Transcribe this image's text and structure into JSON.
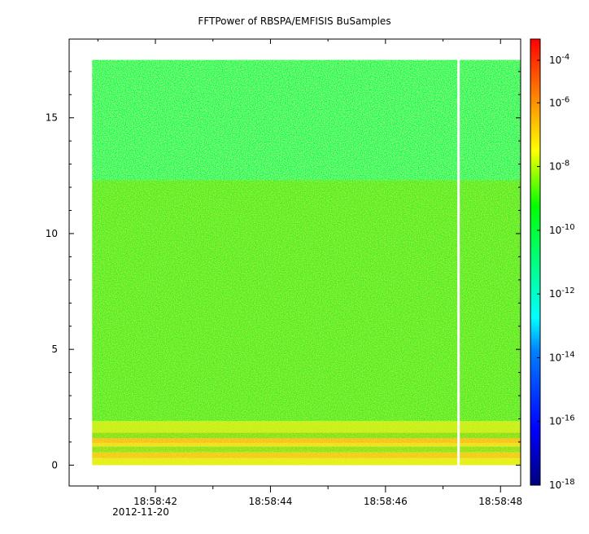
{
  "chart_data": {
    "type": "heatmap",
    "title": "FFTPower of RBSPA/EMFISIS  BuSamples",
    "x_axis": {
      "ticks": [
        {
          "label": "18:58:42",
          "sub_label": "2012-11-20"
        },
        {
          "label": "18:58:44",
          "sub_label": ""
        },
        {
          "label": "18:58:46",
          "sub_label": ""
        },
        {
          "label": "18:58:48",
          "sub_label": ""
        }
      ],
      "range_seconds_after_18_58_40": [
        0.5,
        8.35
      ],
      "data_start": 0.9,
      "data_end": 8.35,
      "gap_at": 7.27
    },
    "y_axis": {
      "ticks": [
        0,
        5,
        10,
        15
      ],
      "range": [
        -0.9,
        18.4
      ],
      "data_range": [
        0,
        17.5
      ]
    },
    "colorbar": {
      "scale": "log",
      "range": [
        "1e-18",
        "1e-4"
      ],
      "ticks": [
        {
          "base": "10",
          "exp": "-4"
        },
        {
          "base": "10",
          "exp": "-6"
        },
        {
          "base": "10",
          "exp": "-8"
        },
        {
          "base": "10",
          "exp": "-10"
        },
        {
          "base": "10",
          "exp": "-12"
        },
        {
          "base": "10",
          "exp": "-14"
        },
        {
          "base": "10",
          "exp": "-16"
        },
        {
          "base": "10",
          "exp": "-18"
        }
      ],
      "colors": [
        "#ff0000",
        "#ff8000",
        "#ffff00",
        "#00ff00",
        "#00ffff",
        "#0000ff",
        "#00007f"
      ]
    },
    "bands": [
      {
        "y_from": 12.3,
        "y_to": 17.5,
        "level": "1e-12",
        "color": "#00fa6a"
      },
      {
        "y_from": 1.9,
        "y_to": 12.3,
        "level": "1e-10",
        "color": "#44ee22"
      },
      {
        "y_from": 1.4,
        "y_to": 1.9,
        "level": "1e-9",
        "color": "#c8f000"
      },
      {
        "y_from": 1.15,
        "y_to": 1.4,
        "level": "1e-10",
        "color": "#7ee000"
      },
      {
        "y_from": 0.95,
        "y_to": 1.15,
        "level": "1e-8",
        "color": "#ffbb00"
      },
      {
        "y_from": 0.8,
        "y_to": 0.95,
        "level": "1e-9",
        "color": "#f0e000"
      },
      {
        "y_from": 0.55,
        "y_to": 0.8,
        "level": "1e-10",
        "color": "#8ae200"
      },
      {
        "y_from": 0.3,
        "y_to": 0.55,
        "level": "1e-8",
        "color": "#f6c800"
      },
      {
        "y_from": 0.0,
        "y_to": 0.3,
        "level": "1e-9",
        "color": "#e8f000"
      }
    ]
  }
}
